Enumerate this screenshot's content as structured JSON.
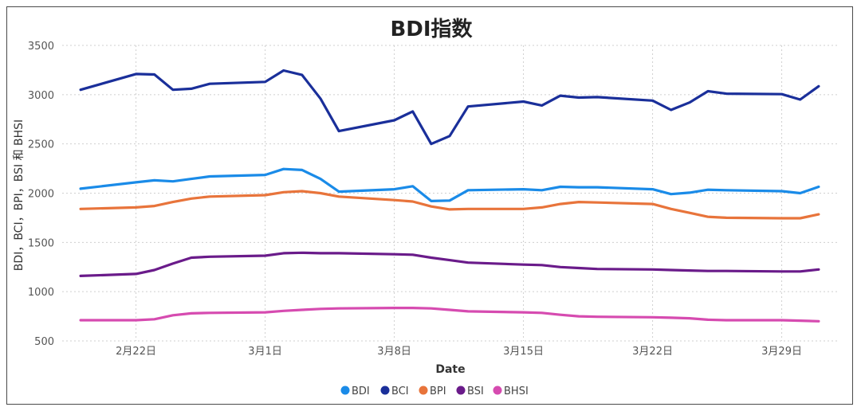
{
  "chart_data": {
    "type": "line",
    "title": "BDI指数",
    "xlabel": "Date",
    "ylabel": "BDI，BCI，BPI，BSI 和 BHSI",
    "ylim": [
      500,
      3500
    ],
    "yticks": [
      500,
      1000,
      1500,
      2000,
      2500,
      3000,
      3500
    ],
    "grid": true,
    "legend_position": "bottom",
    "x_tick_labels": [
      {
        "label": "2月22日",
        "date": "2021-02-22"
      },
      {
        "label": "3月1日",
        "date": "2021-03-01"
      },
      {
        "label": "3月8日",
        "date": "2021-03-08"
      },
      {
        "label": "3月15日",
        "date": "2021-03-15"
      },
      {
        "label": "3月22日",
        "date": "2021-03-22"
      },
      {
        "label": "3月29日",
        "date": "2021-03-29"
      }
    ],
    "x": [
      "2021-02-19",
      "2021-02-22",
      "2021-02-23",
      "2021-02-24",
      "2021-02-25",
      "2021-02-26",
      "2021-03-01",
      "2021-03-02",
      "2021-03-03",
      "2021-03-04",
      "2021-03-05",
      "2021-03-08",
      "2021-03-09",
      "2021-03-10",
      "2021-03-11",
      "2021-03-12",
      "2021-03-15",
      "2021-03-16",
      "2021-03-17",
      "2021-03-18",
      "2021-03-19",
      "2021-03-22",
      "2021-03-23",
      "2021-03-24",
      "2021-03-25",
      "2021-03-26",
      "2021-03-29",
      "2021-03-30",
      "2021-03-31"
    ],
    "series": [
      {
        "name": "BCI",
        "color": "#1a2f9a",
        "values": [
          3050,
          3210,
          3205,
          3050,
          3060,
          3110,
          3130,
          3245,
          3200,
          2960,
          2630,
          2740,
          2830,
          2500,
          2580,
          2880,
          2930,
          2890,
          2990,
          2970,
          2975,
          2940,
          2845,
          2920,
          3035,
          3010,
          3005,
          2950,
          3085
        ]
      },
      {
        "name": "BDI",
        "color": "#1a8be8",
        "values": [
          2045,
          2110,
          2130,
          2120,
          2145,
          2170,
          2185,
          2245,
          2235,
          2145,
          2015,
          2040,
          2070,
          1920,
          1925,
          2030,
          2040,
          2030,
          2065,
          2060,
          2060,
          2040,
          1990,
          2005,
          2035,
          2030,
          2020,
          2000,
          2065
        ]
      },
      {
        "name": "BPI",
        "color": "#e8743b",
        "values": [
          1840,
          1855,
          1870,
          1910,
          1945,
          1965,
          1980,
          2010,
          2020,
          2000,
          1965,
          1930,
          1915,
          1865,
          1835,
          1840,
          1840,
          1855,
          1890,
          1910,
          1905,
          1890,
          1840,
          1800,
          1760,
          1750,
          1745,
          1745,
          1785
        ]
      },
      {
        "name": "BSI",
        "color": "#6a1b8a",
        "values": [
          1160,
          1180,
          1220,
          1285,
          1345,
          1355,
          1365,
          1390,
          1395,
          1390,
          1390,
          1380,
          1375,
          1345,
          1320,
          1295,
          1275,
          1270,
          1250,
          1240,
          1230,
          1225,
          1220,
          1215,
          1210,
          1210,
          1205,
          1205,
          1225
        ]
      },
      {
        "name": "BHSI",
        "color": "#d64bb0",
        "values": [
          710,
          710,
          720,
          760,
          780,
          785,
          790,
          805,
          815,
          825,
          830,
          835,
          835,
          830,
          815,
          800,
          790,
          785,
          765,
          750,
          745,
          740,
          735,
          730,
          715,
          710,
          710,
          705,
          700
        ]
      }
    ],
    "legend": [
      "BDI",
      "BCI",
      "BPI",
      "BSI",
      "BHSI"
    ]
  }
}
